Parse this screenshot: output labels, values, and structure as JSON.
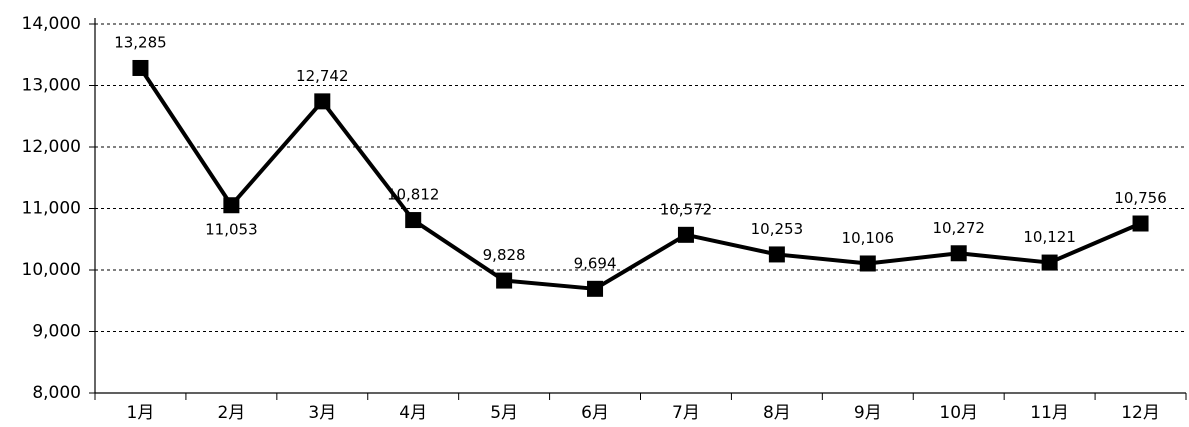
{
  "chart_data": {
    "type": "line",
    "categories": [
      "1月",
      "2月",
      "3月",
      "4月",
      "5月",
      "6月",
      "7月",
      "8月",
      "9月",
      "10月",
      "11月",
      "12月"
    ],
    "series": [
      {
        "color": "#000000",
        "values": [
          13285,
          11053,
          12742,
          10812,
          9828,
          9694,
          10572,
          10253,
          10106,
          10272,
          10121,
          10756
        ],
        "value_labels": [
          "13,285",
          "11,053",
          "12,742",
          "10,812",
          "9,828",
          "9,694",
          "10,572",
          "10,253",
          "10,106",
          "10,272",
          "10,121",
          "10,756"
        ]
      }
    ],
    "ylim": [
      8000,
      14000
    ],
    "yticks": [
      {
        "value": 8000,
        "label": "8,000"
      },
      {
        "value": 9000,
        "label": "9,000"
      },
      {
        "value": 10000,
        "label": "10,000"
      },
      {
        "value": 11000,
        "label": "11,000"
      },
      {
        "value": 12000,
        "label": "12,000"
      },
      {
        "value": 13000,
        "label": "13,000"
      },
      {
        "value": 14000,
        "label": "14,000"
      }
    ],
    "grid": true
  }
}
